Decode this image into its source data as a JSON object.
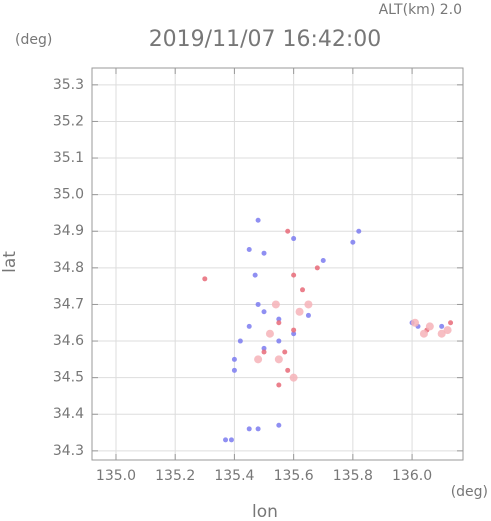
{
  "chart_data": {
    "type": "scatter",
    "title": "2019/11/07 16:42:00",
    "subtitle": "ALT(km)  2.0",
    "y_unit": "(deg)",
    "x_unit": "(deg)",
    "xlabel": "lon",
    "ylabel": "lat",
    "xlim": [
      134.919,
      136.172
    ],
    "ylim": [
      34.275,
      35.346
    ],
    "xticks": [
      {
        "value": 135,
        "label": "135.0"
      },
      135.2,
      135.4,
      135.6,
      135.8,
      {
        "value": 136,
        "label": "136.0"
      }
    ],
    "yticks": [
      34.3,
      34.4,
      34.5,
      34.6,
      34.7,
      34.8,
      34.9,
      {
        "value": 35,
        "label": "35.0"
      },
      35.1,
      35.2,
      35.3
    ],
    "grid": true,
    "series": [
      {
        "color": "#7b7bf0",
        "x": [
          135.48,
          135.45,
          135.5,
          135.47,
          135.6,
          135.7,
          135.82,
          135.8,
          135.48,
          135.5,
          135.55,
          135.45,
          135.42,
          135.5,
          135.4,
          135.55,
          135.6,
          135.4,
          135.65,
          136.0,
          136.02,
          136.1,
          135.39,
          135.37,
          135.45,
          135.48,
          135.55
        ],
        "y": [
          34.93,
          34.85,
          34.84,
          34.78,
          34.88,
          34.82,
          34.9,
          34.87,
          34.7,
          34.68,
          34.66,
          34.64,
          34.6,
          34.58,
          34.55,
          34.6,
          34.62,
          34.52,
          34.67,
          34.65,
          34.64,
          34.64,
          34.33,
          34.33,
          34.36,
          34.36,
          34.37
        ]
      },
      {
        "color": "#e86a78",
        "x": [
          135.3,
          135.58,
          135.6,
          135.68,
          135.63,
          135.55,
          135.5,
          135.58,
          135.6,
          135.57,
          135.55,
          136.05,
          136.13
        ],
        "y": [
          34.77,
          34.9,
          34.78,
          34.8,
          34.74,
          34.65,
          34.57,
          34.52,
          34.63,
          34.57,
          34.48,
          34.63,
          34.65
        ]
      },
      {
        "color": "#f6b3b8",
        "x": [
          135.52,
          135.48,
          135.55,
          135.6,
          135.62,
          135.65,
          136.01,
          136.06,
          136.1,
          136.04,
          136.12,
          135.54
        ],
        "y": [
          34.62,
          34.55,
          34.55,
          34.5,
          34.68,
          34.7,
          34.65,
          34.64,
          34.62,
          34.62,
          34.63,
          34.7
        ]
      }
    ]
  }
}
